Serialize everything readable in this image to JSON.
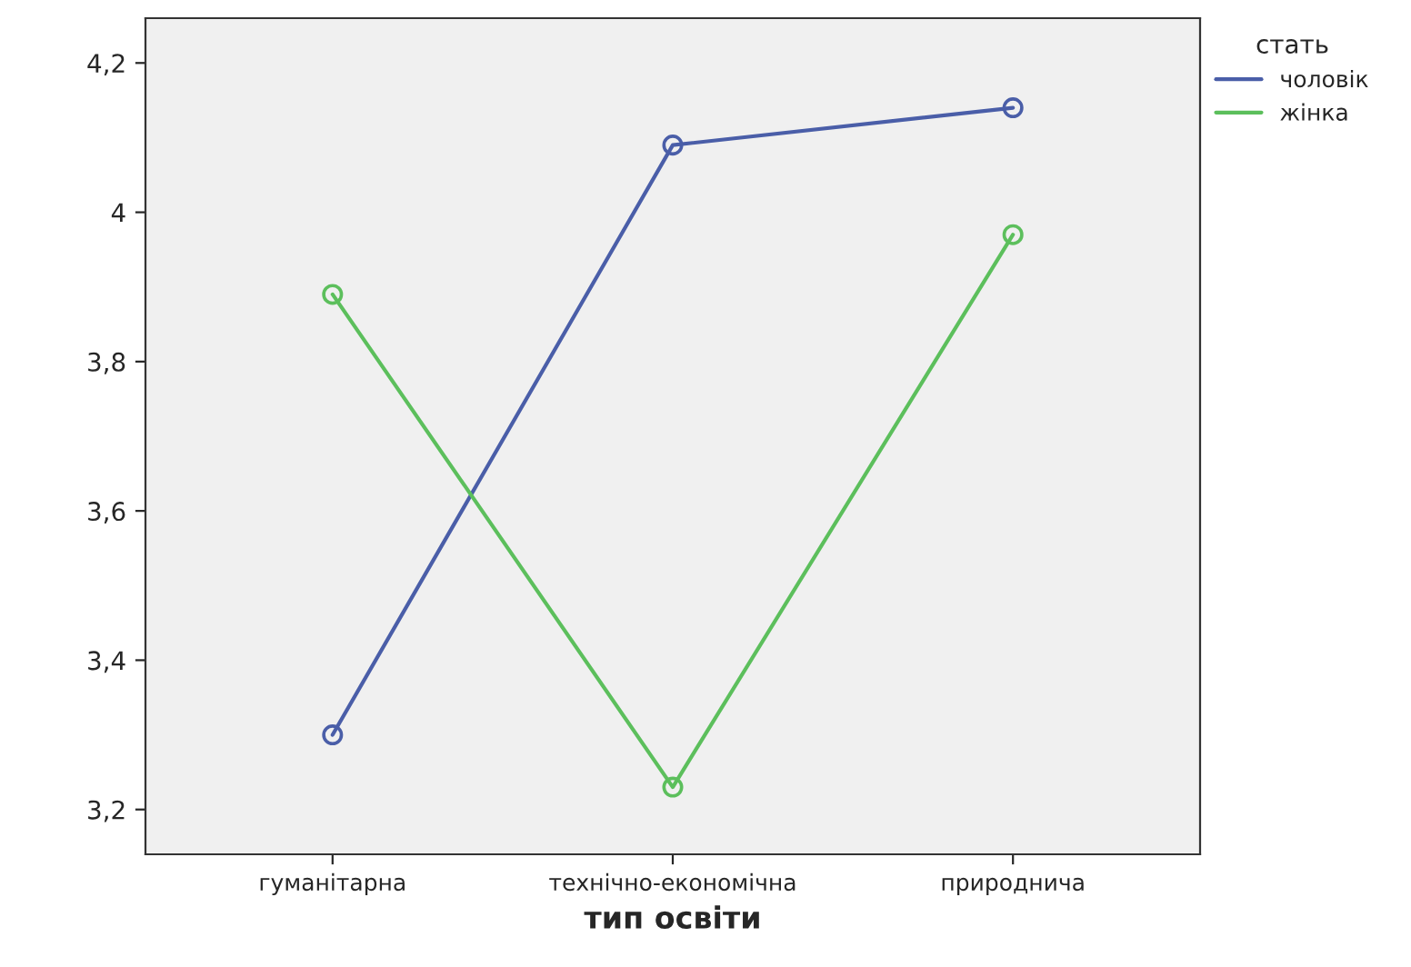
{
  "chart_data": {
    "type": "line",
    "xlabel": "тип освіти",
    "legend_title": "стать",
    "legend": "top right",
    "marker": "circle",
    "grid": false,
    "categories": [
      "гуманітарна",
      "технічно-економічна",
      "природнича"
    ],
    "series": [
      {
        "name": "чоловік",
        "color": "#4a5ea8",
        "values": [
          3.3,
          4.09,
          4.14
        ]
      },
      {
        "name": "жінка",
        "color": "#5cbf5c",
        "values": [
          3.89,
          3.23,
          3.97
        ]
      }
    ],
    "ylim": [
      3.14,
      4.26
    ],
    "yticks": [
      {
        "value": 3.2,
        "label": "3,2"
      },
      {
        "value": 3.4,
        "label": "3,4"
      },
      {
        "value": 3.6,
        "label": "3,6"
      },
      {
        "value": 3.8,
        "label": "3,8"
      },
      {
        "value": 4.0,
        "label": "4"
      },
      {
        "value": 4.2,
        "label": "4,2"
      }
    ]
  }
}
